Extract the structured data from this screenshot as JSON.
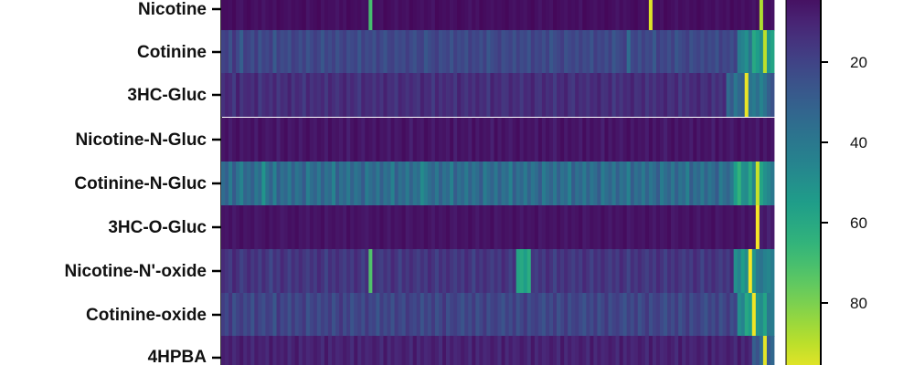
{
  "chart_data": {
    "type": "heatmap",
    "rows": [
      "Nicotine",
      "Cotinine",
      "3HC-Gluc",
      "Nicotine-N-Gluc",
      "Cotinine-N-Gluc",
      "3HC-O-Gluc",
      "Nicotine-N'-oxide",
      "Cotinine-oxide",
      "4HPBA"
    ],
    "n_columns": 150,
    "colorbar": {
      "ticks": [
        20,
        40,
        60,
        80
      ],
      "range": [
        0,
        100
      ],
      "colormap": "viridis"
    },
    "values": [
      [
        3,
        3,
        4,
        2,
        5,
        6,
        3,
        2,
        4,
        5,
        3,
        6,
        4,
        3,
        5,
        2,
        3,
        4,
        5,
        3,
        4,
        3,
        2,
        6,
        4,
        3,
        2,
        5,
        3,
        4,
        4,
        6,
        3,
        5,
        2,
        3,
        4,
        3,
        5,
        4,
        70,
        3,
        4,
        5,
        2,
        3,
        4,
        6,
        3,
        4,
        5,
        2,
        3,
        4,
        5,
        3,
        4,
        6,
        2,
        3,
        4,
        3,
        5,
        4,
        2,
        3,
        4,
        6,
        3,
        5,
        2,
        3,
        4,
        5,
        3,
        4,
        3,
        2,
        4,
        5,
        3,
        4,
        5,
        3,
        2,
        4,
        6,
        3,
        4,
        5,
        2,
        3,
        4,
        5,
        3,
        4,
        3,
        6,
        2,
        3,
        4,
        5,
        3,
        4,
        2,
        3,
        4,
        6,
        3,
        5,
        4,
        3,
        2,
        4,
        5,
        3,
        95,
        4,
        3,
        5,
        2,
        3,
        4,
        6,
        3,
        4,
        5,
        3,
        4,
        2,
        3,
        5,
        4,
        3,
        6,
        4,
        3,
        5,
        2,
        4,
        3,
        5,
        3,
        4,
        6,
        3,
        88,
        4,
        3,
        5
      ],
      [
        20,
        18,
        25,
        15,
        22,
        30,
        18,
        20,
        24,
        17,
        26,
        20,
        22,
        18,
        28,
        19,
        23,
        21,
        25,
        18,
        20,
        24,
        19,
        26,
        22,
        18,
        21,
        27,
        20,
        23,
        19,
        25,
        21,
        18,
        24,
        22,
        20,
        27,
        19,
        23,
        21,
        25,
        18,
        22,
        26,
        20,
        19,
        24,
        21,
        23,
        18,
        22,
        25,
        20,
        19,
        27,
        23,
        21,
        18,
        24,
        22,
        20,
        26,
        19,
        23,
        21,
        25,
        18,
        22,
        20,
        24,
        19,
        27,
        23,
        21,
        18,
        24,
        22,
        20,
        25,
        19,
        23,
        21,
        26,
        18,
        22,
        20,
        24,
        19,
        27,
        23,
        21,
        18,
        25,
        22,
        20,
        24,
        19,
        23,
        21,
        26,
        18,
        22,
        20,
        24,
        19,
        27,
        23,
        21,
        18,
        35,
        22,
        20,
        25,
        19,
        23,
        21,
        28,
        18,
        22,
        20,
        24,
        19,
        27,
        23,
        21,
        18,
        25,
        22,
        20,
        24,
        19,
        23,
        21,
        26,
        18,
        22,
        20,
        24,
        19,
        42,
        45,
        50,
        38,
        60,
        55,
        48,
        90,
        52,
        58
      ],
      [
        14,
        10,
        12,
        18,
        8,
        16,
        12,
        11,
        14,
        9,
        18,
        13,
        11,
        15,
        10,
        17,
        12,
        14,
        9,
        16,
        11,
        13,
        18,
        10,
        15,
        12,
        14,
        11,
        17,
        10,
        13,
        16,
        12,
        9,
        15,
        11,
        14,
        18,
        10,
        13,
        12,
        16,
        11,
        15,
        9,
        14,
        13,
        17,
        10,
        12,
        15,
        11,
        14,
        16,
        9,
        13,
        12,
        18,
        10,
        15,
        11,
        14,
        12,
        17,
        9,
        13,
        16,
        11,
        15,
        10,
        14,
        12,
        18,
        9,
        13,
        11,
        16,
        15,
        10,
        14,
        12,
        17,
        11,
        13,
        9,
        15,
        16,
        10,
        14,
        12,
        18,
        11,
        13,
        9,
        15,
        17,
        10,
        14,
        12,
        16,
        11,
        13,
        9,
        15,
        14,
        10,
        18,
        12,
        16,
        11,
        13,
        9,
        15,
        14,
        10,
        17,
        12,
        16,
        11,
        13,
        9,
        15,
        14,
        10,
        18,
        12,
        16,
        11,
        13,
        9,
        15,
        14,
        10,
        17,
        12,
        16,
        11,
        35,
        28,
        40,
        33,
        30,
        97,
        38,
        42,
        36,
        45,
        38,
        30,
        25
      ],
      [
        6,
        4,
        8,
        5,
        3,
        7,
        5,
        6,
        4,
        8,
        3,
        5,
        7,
        6,
        4,
        9,
        5,
        3,
        7,
        6,
        4,
        8,
        5,
        3,
        6,
        7,
        4,
        5,
        8,
        3,
        6,
        5,
        7,
        4,
        9,
        5,
        3,
        6,
        8,
        4,
        5,
        7,
        3,
        6,
        5,
        8,
        4,
        7,
        6,
        3,
        5,
        9,
        4,
        6,
        7,
        3,
        5,
        8,
        4,
        6,
        5,
        7,
        3,
        9,
        4,
        6,
        5,
        8,
        3,
        7,
        4,
        6,
        5,
        9,
        3,
        7,
        4,
        6,
        8,
        5,
        3,
        7,
        4,
        6,
        5,
        8,
        3,
        7,
        4,
        6,
        9,
        5,
        3,
        7,
        4,
        6,
        5,
        8,
        3,
        7,
        4,
        6,
        5,
        9,
        3,
        7,
        4,
        6,
        8,
        5,
        3,
        7,
        4,
        6,
        5,
        8,
        3,
        7,
        4,
        6,
        9,
        5,
        3,
        7,
        4,
        6,
        5,
        8,
        3,
        7,
        4,
        6,
        5,
        9,
        3,
        7,
        4,
        6,
        8,
        5,
        3,
        7,
        4,
        6,
        5,
        8,
        3,
        7,
        4,
        6
      ],
      [
        35,
        30,
        42,
        28,
        38,
        45,
        32,
        36,
        30,
        40,
        34,
        52,
        38,
        31,
        44,
        29,
        37,
        33,
        41,
        30,
        39,
        35,
        28,
        43,
        36,
        32,
        40,
        30,
        38,
        34,
        45,
        29,
        37,
        33,
        41,
        31,
        39,
        35,
        28,
        42,
        36,
        32,
        40,
        30,
        38,
        34,
        44,
        29,
        37,
        33,
        41,
        31,
        39,
        35,
        48,
        42,
        36,
        32,
        40,
        30,
        38,
        34,
        44,
        29,
        37,
        33,
        41,
        31,
        39,
        35,
        28,
        42,
        36,
        32,
        40,
        30,
        38,
        34,
        44,
        29,
        37,
        33,
        41,
        31,
        39,
        35,
        28,
        42,
        36,
        32,
        40,
        30,
        38,
        34,
        44,
        29,
        37,
        33,
        41,
        31,
        39,
        35,
        28,
        42,
        36,
        32,
        40,
        30,
        38,
        34,
        44,
        29,
        37,
        33,
        41,
        31,
        39,
        35,
        28,
        42,
        36,
        32,
        40,
        30,
        38,
        34,
        44,
        29,
        37,
        33,
        41,
        31,
        39,
        35,
        28,
        42,
        36,
        32,
        40,
        55,
        65,
        50,
        48,
        60,
        45,
        92,
        58,
        50,
        46,
        40
      ],
      [
        5,
        6,
        4,
        7,
        5,
        3,
        6,
        5,
        4,
        7,
        6,
        5,
        3,
        6,
        4,
        5,
        7,
        6,
        4,
        5,
        3,
        6,
        5,
        7,
        4,
        6,
        5,
        3,
        7,
        5,
        4,
        6,
        5,
        7,
        3,
        6,
        4,
        5,
        6,
        7,
        5,
        4,
        6,
        3,
        5,
        7,
        4,
        6,
        5,
        3,
        7,
        6,
        4,
        5,
        6,
        3,
        5,
        7,
        4,
        6,
        5,
        3,
        6,
        7,
        4,
        5,
        6,
        3,
        5,
        7,
        4,
        6,
        5,
        3,
        7,
        6,
        4,
        5,
        6,
        3,
        5,
        7,
        4,
        6,
        5,
        3,
        7,
        6,
        4,
        5,
        6,
        3,
        5,
        7,
        4,
        6,
        5,
        3,
        7,
        6,
        4,
        5,
        6,
        3,
        5,
        7,
        4,
        6,
        5,
        3,
        7,
        6,
        4,
        5,
        6,
        3,
        5,
        7,
        4,
        6,
        5,
        3,
        7,
        6,
        4,
        5,
        6,
        3,
        5,
        7,
        4,
        6,
        5,
        3,
        7,
        6,
        4,
        5,
        6,
        3,
        5,
        7,
        4,
        6,
        5,
        99,
        8,
        6,
        10,
        7
      ],
      [
        12,
        15,
        18,
        10,
        14,
        20,
        16,
        11,
        17,
        13,
        19,
        12,
        16,
        22,
        14,
        18,
        11,
        15,
        20,
        13,
        17,
        12,
        16,
        19,
        14,
        18,
        11,
        15,
        21,
        13,
        17,
        12,
        16,
        19,
        14,
        18,
        11,
        15,
        20,
        13,
        72,
        12,
        16,
        19,
        14,
        18,
        11,
        15,
        21,
        13,
        17,
        12,
        16,
        19,
        14,
        18,
        11,
        15,
        20,
        13,
        17,
        12,
        16,
        19,
        14,
        18,
        11,
        15,
        21,
        13,
        17,
        12,
        16,
        19,
        14,
        18,
        11,
        15,
        20,
        13,
        58,
        60,
        55,
        62,
        16,
        19,
        14,
        18,
        11,
        15,
        21,
        13,
        17,
        12,
        16,
        19,
        14,
        18,
        11,
        15,
        20,
        13,
        17,
        12,
        16,
        19,
        14,
        18,
        11,
        15,
        21,
        13,
        17,
        12,
        16,
        19,
        14,
        18,
        11,
        15,
        20,
        13,
        17,
        12,
        16,
        19,
        14,
        18,
        11,
        15,
        21,
        13,
        17,
        12,
        16,
        19,
        14,
        18,
        11,
        50,
        45,
        55,
        48,
        99,
        52,
        40,
        38,
        44,
        46,
        42
      ],
      [
        18,
        22,
        15,
        25,
        20,
        17,
        23,
        19,
        26,
        16,
        21,
        24,
        18,
        20,
        27,
        15,
        22,
        19,
        25,
        17,
        23,
        20,
        16,
        26,
        21,
        18,
        24,
        19,
        22,
        17,
        25,
        20,
        15,
        23,
        18,
        26,
        21,
        19,
        24,
        16,
        22,
        20,
        27,
        18,
        23,
        19,
        25,
        17,
        21,
        24,
        16,
        20,
        22,
        18,
        26,
        19,
        23,
        17,
        25,
        21,
        15,
        24,
        20,
        18,
        22,
        26,
        19,
        23,
        17,
        25,
        21,
        16,
        24,
        20,
        18,
        22,
        26,
        19,
        23,
        17,
        25,
        21,
        16,
        24,
        20,
        18,
        22,
        26,
        19,
        23,
        17,
        25,
        21,
        16,
        24,
        20,
        18,
        22,
        26,
        19,
        23,
        17,
        25,
        21,
        16,
        24,
        20,
        18,
        22,
        26,
        19,
        23,
        17,
        25,
        21,
        16,
        24,
        20,
        18,
        22,
        26,
        19,
        23,
        17,
        25,
        21,
        16,
        24,
        20,
        18,
        22,
        26,
        19,
        23,
        17,
        25,
        21,
        16,
        24,
        20,
        50,
        45,
        60,
        55,
        98,
        52,
        48,
        58,
        40,
        42
      ],
      [
        8,
        10,
        7,
        12,
        9,
        6,
        11,
        8,
        13,
        7,
        10,
        9,
        12,
        6,
        11,
        8,
        10,
        7,
        13,
        9,
        6,
        12,
        8,
        11,
        10,
        7,
        9,
        13,
        6,
        12,
        8,
        11,
        10,
        7,
        9,
        13,
        6,
        12,
        8,
        11,
        10,
        7,
        9,
        13,
        6,
        12,
        8,
        11,
        10,
        7,
        9,
        13,
        6,
        12,
        8,
        11,
        10,
        7,
        9,
        13,
        6,
        12,
        8,
        11,
        10,
        7,
        9,
        13,
        6,
        12,
        8,
        11,
        10,
        7,
        9,
        13,
        6,
        12,
        8,
        11,
        10,
        7,
        9,
        13,
        6,
        12,
        8,
        11,
        10,
        7,
        9,
        13,
        6,
        12,
        8,
        11,
        10,
        7,
        9,
        13,
        6,
        12,
        8,
        11,
        10,
        7,
        9,
        13,
        6,
        12,
        8,
        11,
        10,
        7,
        9,
        13,
        6,
        12,
        8,
        11,
        10,
        7,
        9,
        13,
        6,
        12,
        8,
        11,
        10,
        7,
        9,
        13,
        6,
        12,
        8,
        11,
        10,
        7,
        9,
        13,
        6,
        12,
        8,
        11,
        30,
        25,
        35,
        96,
        28,
        33
      ]
    ]
  }
}
